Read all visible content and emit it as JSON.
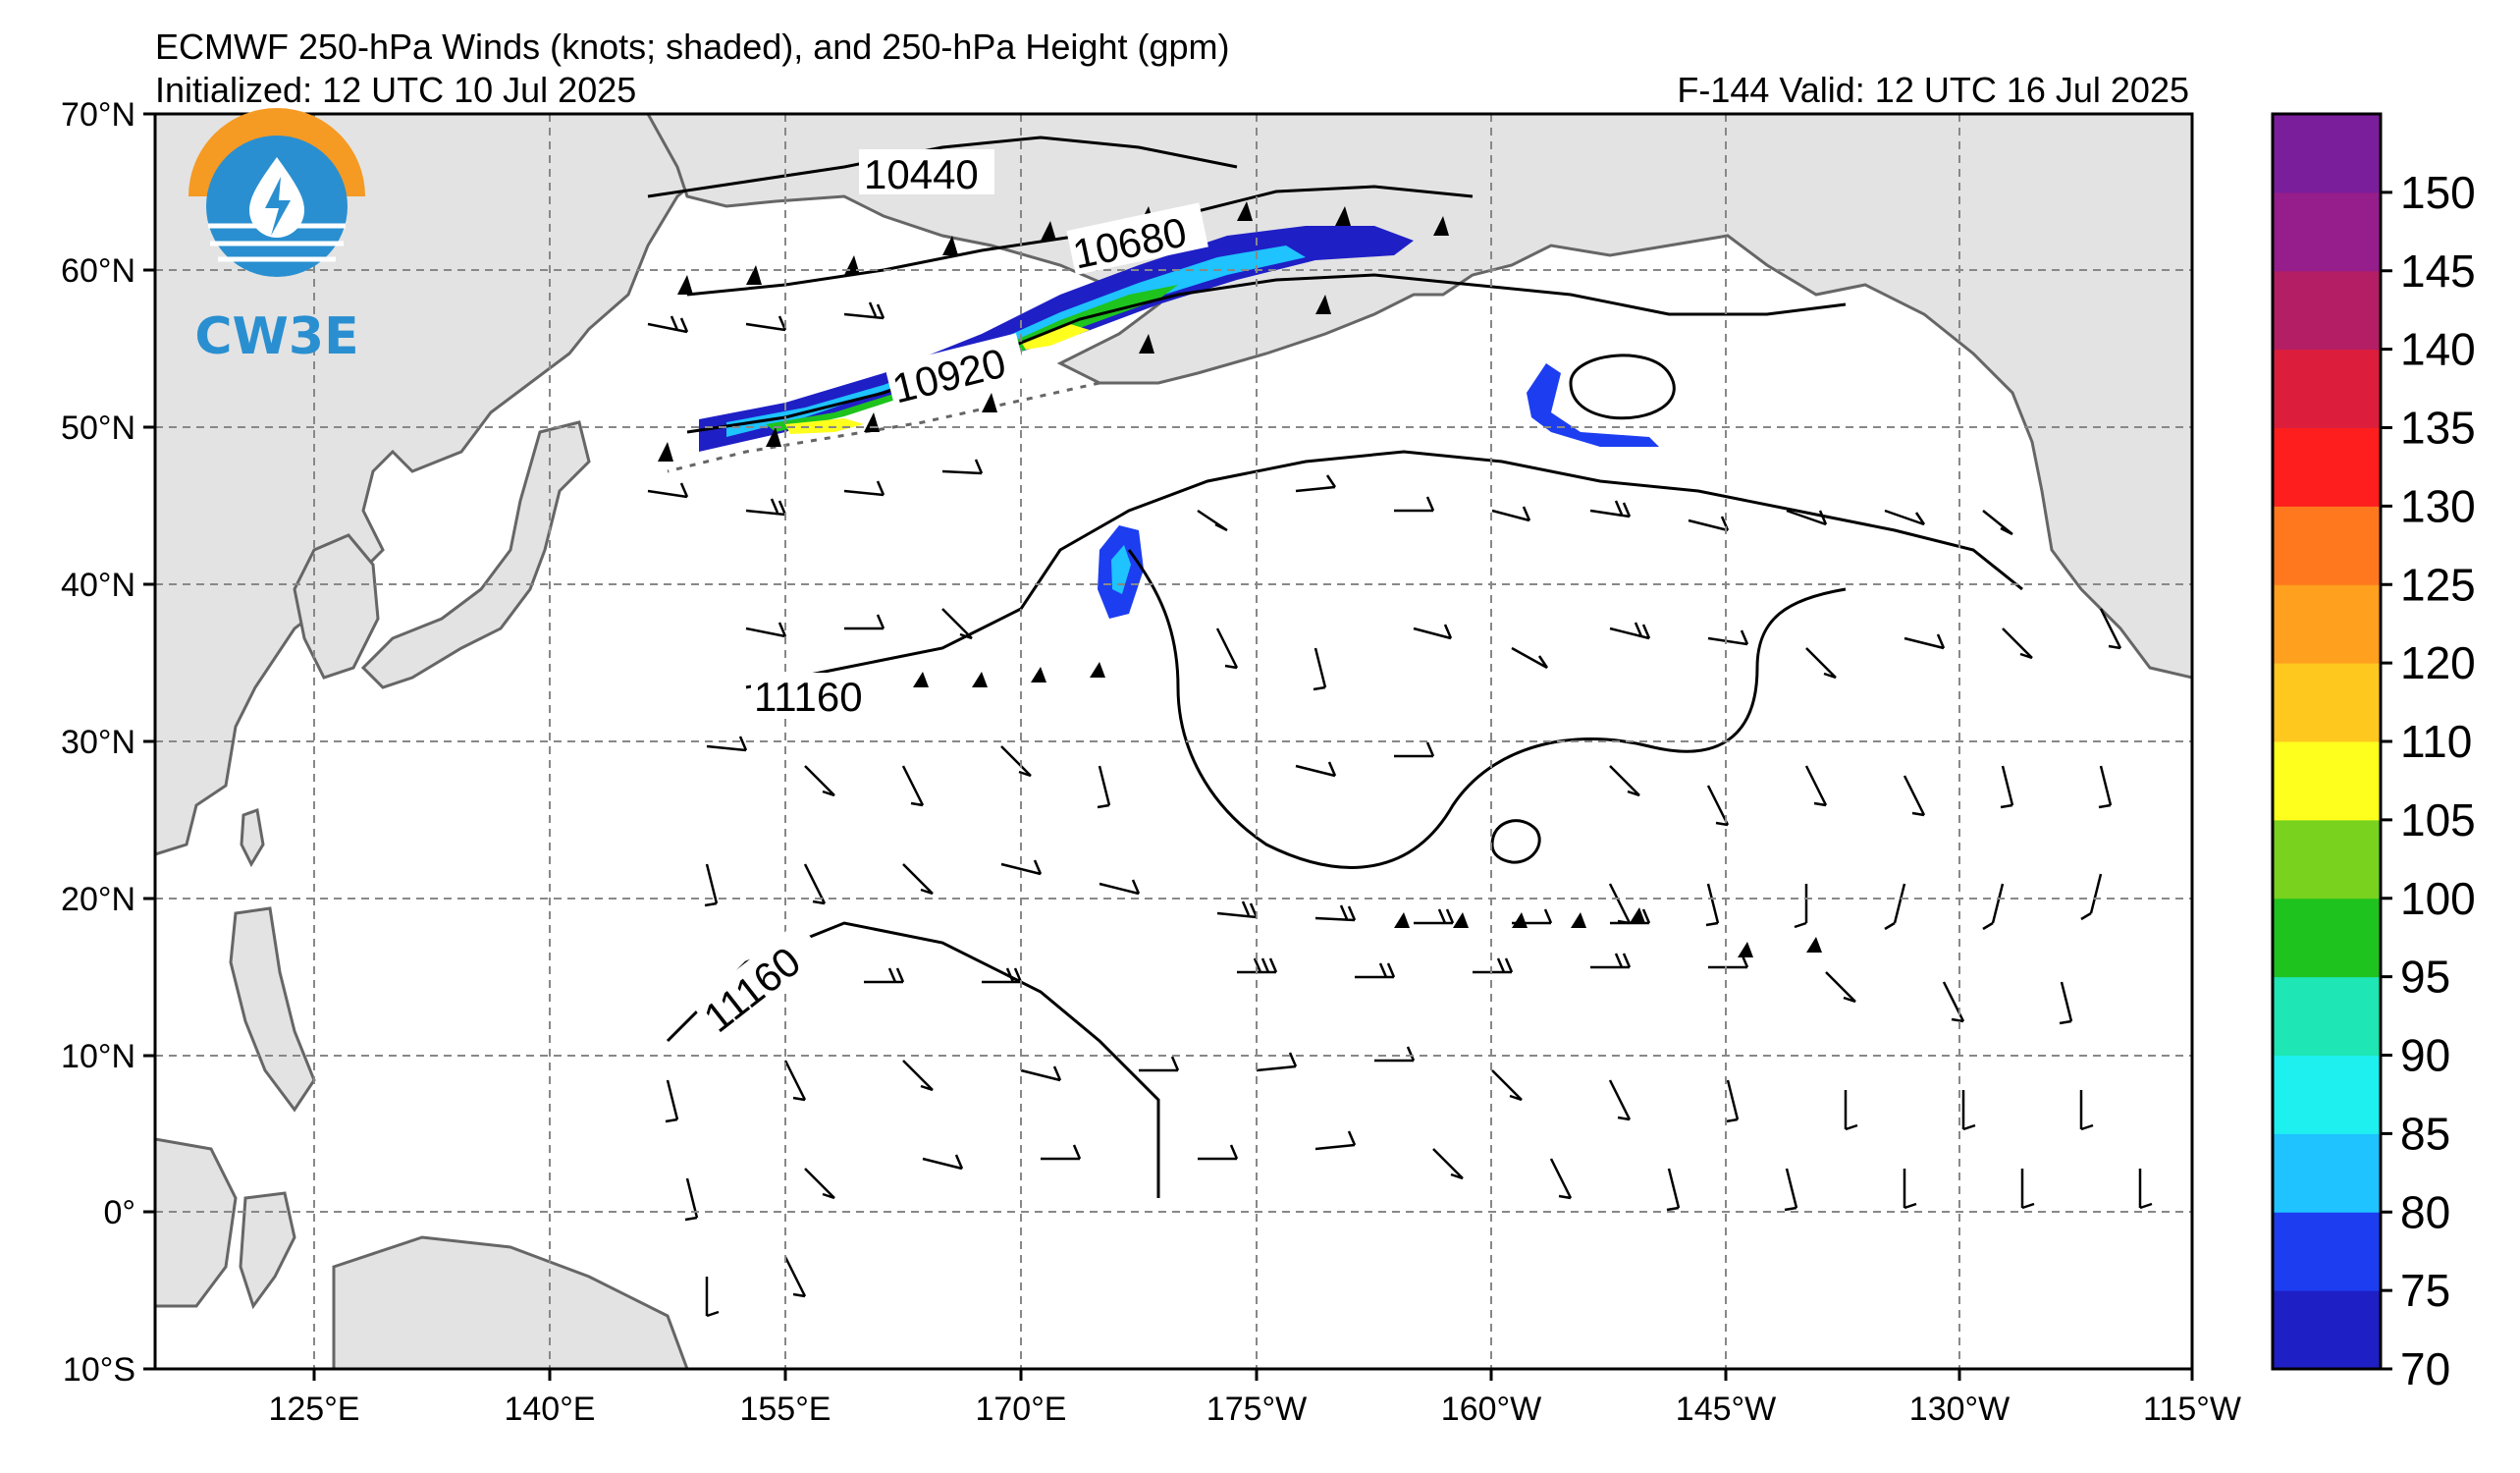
{
  "header": {
    "title": "ECMWF 250-hPa Winds (knots; shaded), and 250-hPa Height (gpm)",
    "initialized": "Initialized: 12 UTC 10 Jul 2025",
    "valid": "F-144  Valid: 12 UTC 16 Jul 2025"
  },
  "logo": {
    "text": "CW3E"
  },
  "map": {
    "lon_labels": [
      "125°E",
      "140°E",
      "155°E",
      "170°E",
      "175°W",
      "160°W",
      "145°W",
      "130°W",
      "115°W"
    ],
    "lat_labels": [
      "70°N",
      "60°N",
      "50°N",
      "40°N",
      "30°N",
      "20°N",
      "10°N",
      "0°",
      "10°S"
    ],
    "contour_labels": [
      "10440",
      "10680",
      "10920",
      "11160",
      "11160"
    ]
  },
  "colorbar": {
    "levels": [
      "70",
      "75",
      "80",
      "85",
      "90",
      "95",
      "100",
      "105",
      "110",
      "120",
      "125",
      "130",
      "135",
      "140",
      "145",
      "150"
    ],
    "colors": [
      "#1f1fc6",
      "#1c3ef0",
      "#1ec3ff",
      "#1ef0f0",
      "#1ee6b4",
      "#1ec31e",
      "#78d21e",
      "#ffff1e",
      "#ffc81e",
      "#ffa01e",
      "#ff781e",
      "#ff1e1e",
      "#dc1e3c",
      "#b41e64",
      "#961e8c",
      "#7a1e9c"
    ]
  }
}
